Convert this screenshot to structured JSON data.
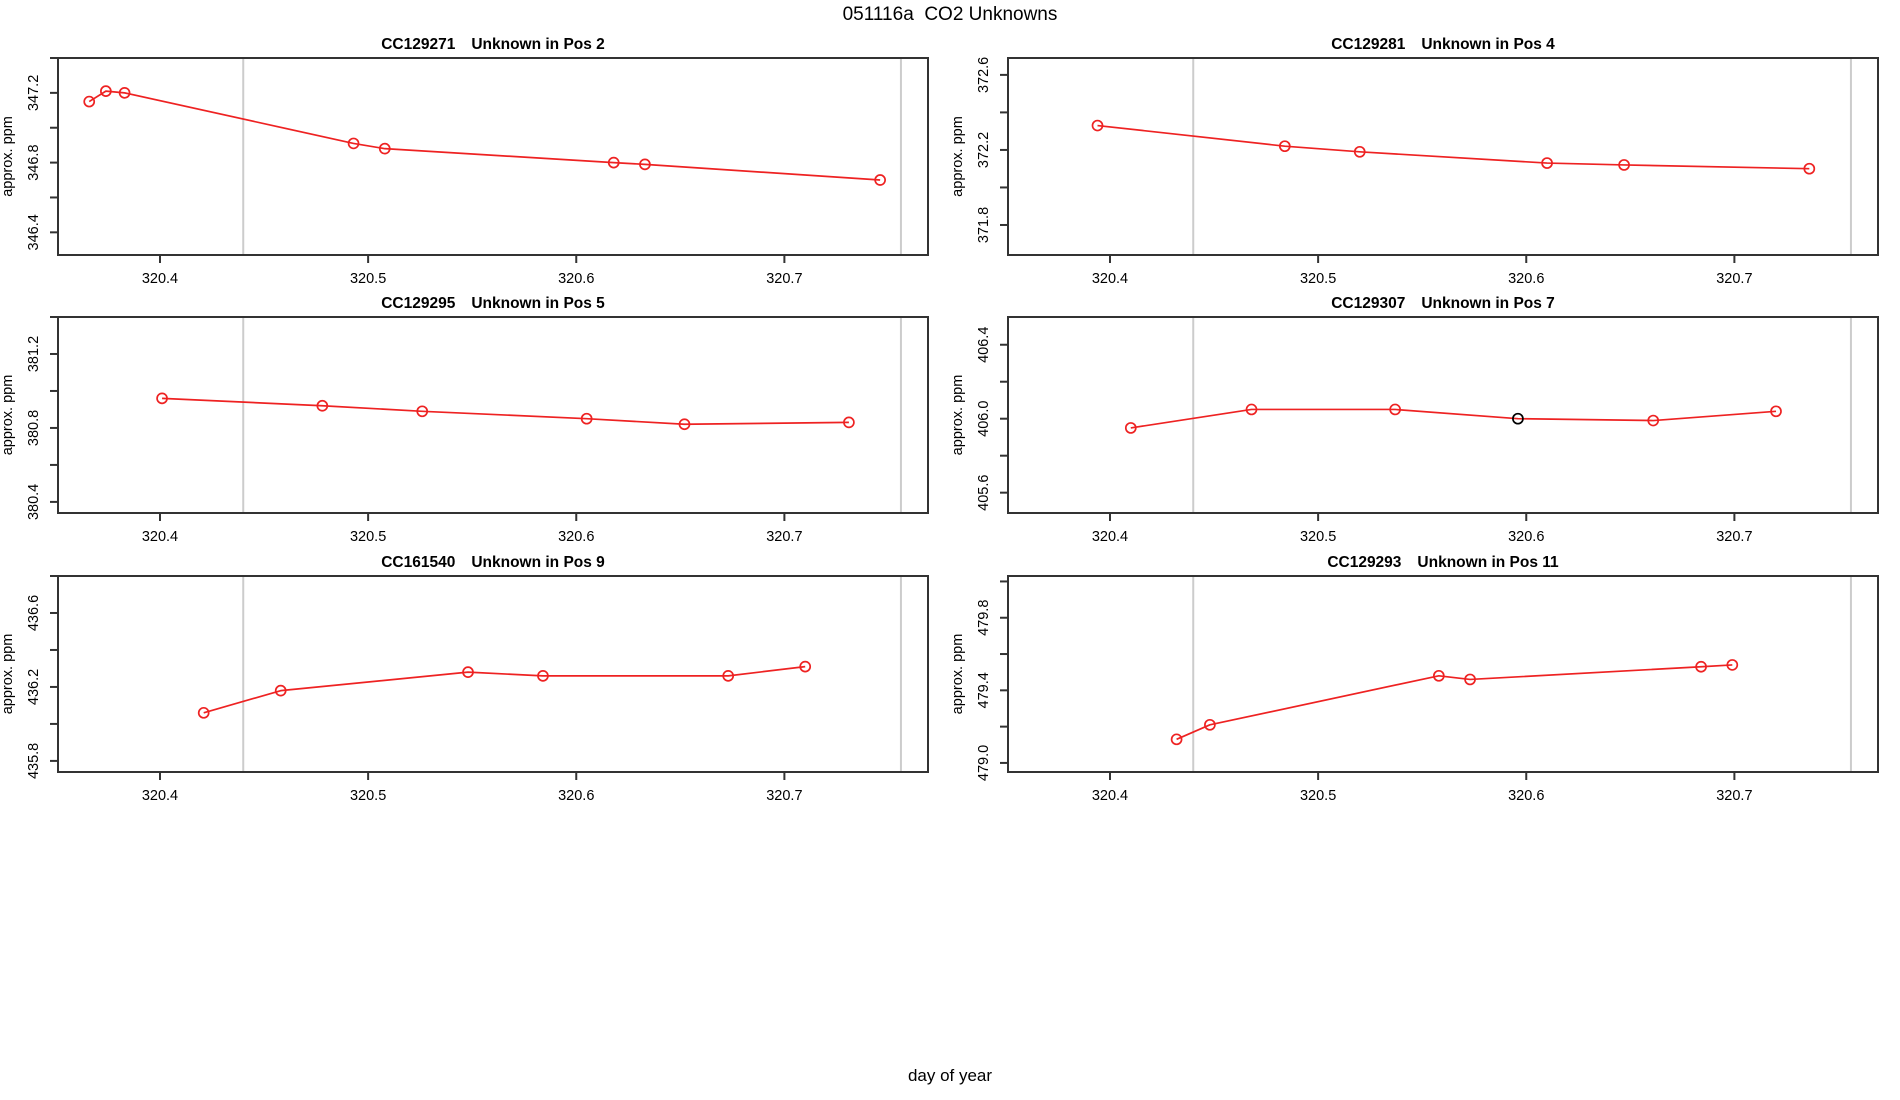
{
  "page": {
    "title": "051116a  CO2 Unknowns",
    "xlabel": "day of year",
    "background": "#ffffff"
  },
  "colors": {
    "series": "#ee2222",
    "special_point": "#000000",
    "guide_line": "#cccccc",
    "frame": "#333333",
    "text": "#000000"
  },
  "chart_data": [
    {
      "type": "line",
      "title_parts": [
        "CC129271",
        "Unknown in Pos 2"
      ],
      "ylabel": "approx. ppm",
      "xlim": [
        320.351,
        320.769
      ],
      "ylim": [
        346.27,
        347.4
      ],
      "xticks": [
        320.4,
        320.5,
        320.6,
        320.7
      ],
      "xtick_labels": [
        "320.4",
        "320.5",
        "320.6",
        "320.7"
      ],
      "yticks": [
        346.4,
        346.6,
        346.8,
        347.0,
        347.2,
        347.4
      ],
      "ytick_labels": [
        "346.4",
        "",
        "346.8",
        "",
        "347.2",
        ""
      ],
      "guides_x": [
        320.44,
        320.756
      ],
      "points": [
        {
          "x": 320.366,
          "y": 347.15,
          "color": "#ee2222"
        },
        {
          "x": 320.374,
          "y": 347.21,
          "color": "#ee2222"
        },
        {
          "x": 320.383,
          "y": 347.2,
          "color": "#ee2222"
        },
        {
          "x": 320.493,
          "y": 346.91,
          "color": "#ee2222"
        },
        {
          "x": 320.508,
          "y": 346.88,
          "color": "#ee2222"
        },
        {
          "x": 320.618,
          "y": 346.8,
          "color": "#ee2222"
        },
        {
          "x": 320.633,
          "y": 346.79,
          "color": "#ee2222"
        },
        {
          "x": 320.746,
          "y": 346.7,
          "color": "#ee2222"
        }
      ]
    },
    {
      "type": "line",
      "title_parts": [
        "CC129281",
        "Unknown in Pos 4"
      ],
      "ylabel": "approx. ppm",
      "xlim": [
        320.351,
        320.769
      ],
      "ylim": [
        371.64,
        372.69
      ],
      "xticks": [
        320.4,
        320.5,
        320.6,
        320.7
      ],
      "xtick_labels": [
        "320.4",
        "320.5",
        "320.6",
        "320.7"
      ],
      "yticks": [
        371.8,
        372.0,
        372.2,
        372.4,
        372.6
      ],
      "ytick_labels": [
        "371.8",
        "",
        "372.2",
        "",
        "372.6"
      ],
      "guides_x": [
        320.44,
        320.756
      ],
      "points": [
        {
          "x": 320.394,
          "y": 372.33,
          "color": "#ee2222"
        },
        {
          "x": 320.484,
          "y": 372.22,
          "color": "#ee2222"
        },
        {
          "x": 320.52,
          "y": 372.19,
          "color": "#ee2222"
        },
        {
          "x": 320.61,
          "y": 372.13,
          "color": "#ee2222"
        },
        {
          "x": 320.647,
          "y": 372.12,
          "color": "#ee2222"
        },
        {
          "x": 320.736,
          "y": 372.1,
          "color": "#ee2222"
        }
      ]
    },
    {
      "type": "line",
      "title_parts": [
        "CC129295",
        "Unknown in Pos 5"
      ],
      "ylabel": "approx. ppm",
      "xlim": [
        320.351,
        320.769
      ],
      "ylim": [
        380.34,
        381.4
      ],
      "xticks": [
        320.4,
        320.5,
        320.6,
        320.7
      ],
      "xtick_labels": [
        "320.4",
        "320.5",
        "320.6",
        "320.7"
      ],
      "yticks": [
        380.4,
        380.6,
        380.8,
        381.0,
        381.2,
        381.4
      ],
      "ytick_labels": [
        "380.4",
        "",
        "380.8",
        "",
        "381.2",
        ""
      ],
      "guides_x": [
        320.44,
        320.756
      ],
      "points": [
        {
          "x": 320.401,
          "y": 380.96,
          "color": "#ee2222"
        },
        {
          "x": 320.478,
          "y": 380.92,
          "color": "#ee2222"
        },
        {
          "x": 320.526,
          "y": 380.89,
          "color": "#ee2222"
        },
        {
          "x": 320.605,
          "y": 380.85,
          "color": "#ee2222"
        },
        {
          "x": 320.652,
          "y": 380.82,
          "color": "#ee2222"
        },
        {
          "x": 320.731,
          "y": 380.83,
          "color": "#ee2222"
        }
      ]
    },
    {
      "type": "line",
      "title_parts": [
        "CC129307",
        "Unknown in Pos 7"
      ],
      "ylabel": "approx. ppm",
      "xlim": [
        320.351,
        320.769
      ],
      "ylim": [
        405.49,
        406.55
      ],
      "xticks": [
        320.4,
        320.5,
        320.6,
        320.7
      ],
      "xtick_labels": [
        "320.4",
        "320.5",
        "320.6",
        "320.7"
      ],
      "yticks": [
        405.6,
        405.8,
        406.0,
        406.2,
        406.4
      ],
      "ytick_labels": [
        "405.6",
        "",
        "406.0",
        "",
        "406.4"
      ],
      "guides_x": [
        320.44,
        320.756
      ],
      "points": [
        {
          "x": 320.41,
          "y": 405.95,
          "color": "#ee2222"
        },
        {
          "x": 320.468,
          "y": 406.05,
          "color": "#ee2222"
        },
        {
          "x": 320.537,
          "y": 406.05,
          "color": "#ee2222"
        },
        {
          "x": 320.596,
          "y": 406.0,
          "color": "#000000"
        },
        {
          "x": 320.661,
          "y": 405.99,
          "color": "#ee2222"
        },
        {
          "x": 320.72,
          "y": 406.04,
          "color": "#ee2222"
        }
      ]
    },
    {
      "type": "line",
      "title_parts": [
        "CC161540",
        "Unknown in Pos 9"
      ],
      "ylabel": "approx. ppm",
      "xlim": [
        320.351,
        320.769
      ],
      "ylim": [
        435.74,
        436.8
      ],
      "xticks": [
        320.4,
        320.5,
        320.6,
        320.7
      ],
      "xtick_labels": [
        "320.4",
        "320.5",
        "320.6",
        "320.7"
      ],
      "yticks": [
        435.8,
        436.0,
        436.2,
        436.4,
        436.6,
        436.8
      ],
      "ytick_labels": [
        "435.8",
        "",
        "436.2",
        "",
        "436.6",
        ""
      ],
      "guides_x": [
        320.44,
        320.756
      ],
      "points": [
        {
          "x": 320.421,
          "y": 436.06,
          "color": "#ee2222"
        },
        {
          "x": 320.458,
          "y": 436.18,
          "color": "#ee2222"
        },
        {
          "x": 320.548,
          "y": 436.28,
          "color": "#ee2222"
        },
        {
          "x": 320.584,
          "y": 436.26,
          "color": "#ee2222"
        },
        {
          "x": 320.673,
          "y": 436.26,
          "color": "#ee2222"
        },
        {
          "x": 320.71,
          "y": 436.31,
          "color": "#ee2222"
        }
      ]
    },
    {
      "type": "line",
      "title_parts": [
        "CC129293",
        "Unknown in Pos 11"
      ],
      "ylabel": "approx. ppm",
      "xlim": [
        320.351,
        320.769
      ],
      "ylim": [
        478.95,
        480.03
      ],
      "xticks": [
        320.4,
        320.5,
        320.6,
        320.7
      ],
      "xtick_labels": [
        "320.4",
        "320.5",
        "320.6",
        "320.7"
      ],
      "yticks": [
        479.0,
        479.2,
        479.4,
        479.6,
        479.8,
        480.0
      ],
      "ytick_labels": [
        "479.0",
        "",
        "479.4",
        "",
        "479.8",
        ""
      ],
      "guides_x": [
        320.44,
        320.756
      ],
      "points": [
        {
          "x": 320.432,
          "y": 479.13,
          "color": "#ee2222"
        },
        {
          "x": 320.448,
          "y": 479.21,
          "color": "#ee2222"
        },
        {
          "x": 320.558,
          "y": 479.48,
          "color": "#ee2222"
        },
        {
          "x": 320.573,
          "y": 479.46,
          "color": "#ee2222"
        },
        {
          "x": 320.684,
          "y": 479.53,
          "color": "#ee2222"
        },
        {
          "x": 320.699,
          "y": 479.54,
          "color": "#ee2222"
        }
      ]
    }
  ]
}
